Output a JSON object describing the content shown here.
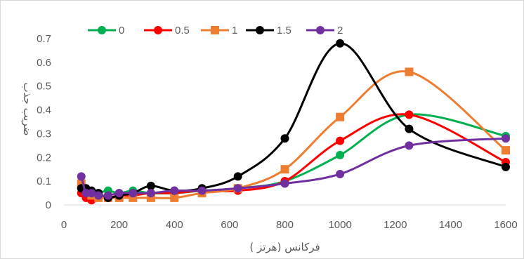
{
  "chart_data": {
    "type": "line",
    "xlabel": "فرکانس (هرتز )",
    "ylabel": "ضریب جذب",
    "xlim": [
      0,
      1600
    ],
    "ylim": [
      0,
      0.7
    ],
    "x_ticks": [
      0,
      200,
      400,
      600,
      800,
      1000,
      1200,
      1400,
      1600
    ],
    "x_tick_labels": [
      "0",
      "200",
      "400",
      "600",
      "800",
      "1000",
      "1200",
      "1400",
      "1600"
    ],
    "y_ticks": [
      0,
      0.1,
      0.2,
      0.3,
      0.4,
      0.5,
      0.6,
      0.7
    ],
    "y_tick_labels": [
      "0",
      "0.1",
      "0.2",
      "0.3",
      "0.4",
      "0.5",
      "0.6",
      "0.7"
    ],
    "grid": false,
    "smooth": true,
    "legend_position": "top",
    "x": [
      63,
      80,
      100,
      125,
      160,
      200,
      250,
      315,
      400,
      500,
      630,
      800,
      1000,
      1250,
      1600
    ],
    "series": [
      {
        "name": "0",
        "color": "#00b050",
        "marker": "circle",
        "values": [
          0.08,
          0.05,
          0.04,
          0.05,
          0.06,
          0.05,
          0.06,
          0.05,
          0.05,
          0.06,
          0.07,
          0.1,
          0.21,
          0.38,
          0.29
        ]
      },
      {
        "name": "0.5",
        "color": "#ff0000",
        "marker": "circle",
        "values": [
          0.05,
          0.03,
          0.02,
          0.04,
          0.03,
          0.04,
          0.04,
          0.05,
          0.05,
          0.06,
          0.06,
          0.1,
          0.27,
          0.38,
          0.18
        ]
      },
      {
        "name": "1",
        "color": "#ed7d31",
        "marker": "square",
        "values": [
          0.09,
          0.06,
          0.04,
          0.03,
          0.03,
          0.03,
          0.03,
          0.03,
          0.03,
          0.05,
          0.07,
          0.15,
          0.37,
          0.56,
          0.23
        ]
      },
      {
        "name": "1.5",
        "color": "#000000",
        "marker": "circle",
        "values": [
          0.07,
          0.07,
          0.06,
          0.05,
          0.03,
          0.04,
          0.05,
          0.08,
          0.06,
          0.07,
          0.12,
          0.28,
          0.68,
          0.32,
          0.16
        ]
      },
      {
        "name": "2",
        "color": "#7030a0",
        "marker": "circle",
        "values": [
          0.12,
          0.05,
          0.05,
          0.04,
          0.04,
          0.05,
          0.05,
          0.05,
          0.06,
          0.06,
          0.07,
          0.09,
          0.13,
          0.25,
          0.28
        ]
      }
    ]
  }
}
